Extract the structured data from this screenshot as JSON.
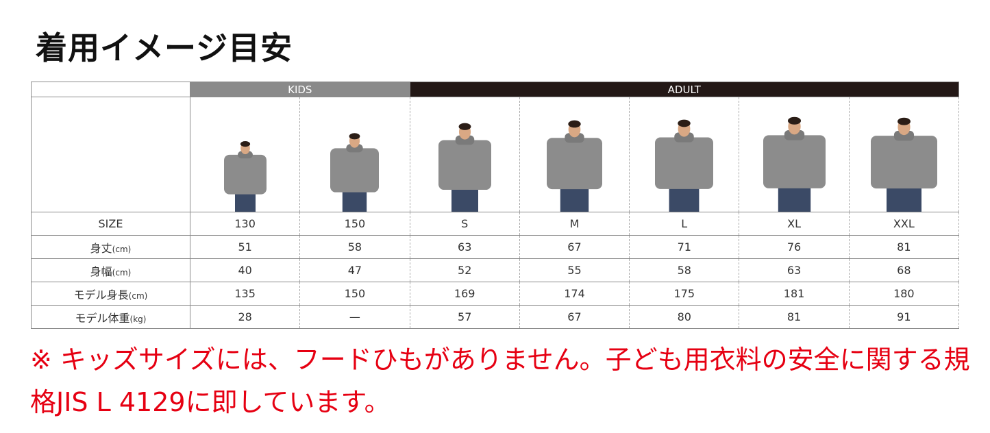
{
  "title": "着用イメージ目安",
  "groups": {
    "kids": "KIDS",
    "adult": "ADULT"
  },
  "colors": {
    "kids_header": "#8a8a8a",
    "adult_header": "#231816",
    "note": "#e60012",
    "hoodie": "#8c8c8c"
  },
  "sizes": [
    "130",
    "150",
    "S",
    "M",
    "L",
    "XL",
    "XXL"
  ],
  "rows": [
    {
      "label": "SIZE",
      "unit": "",
      "values": [
        "130",
        "150",
        "S",
        "M",
        "L",
        "XL",
        "XXL"
      ]
    },
    {
      "label": "身丈",
      "unit": "(cm)",
      "values": [
        "51",
        "58",
        "63",
        "67",
        "71",
        "76",
        "81"
      ]
    },
    {
      "label": "身幅",
      "unit": "(cm)",
      "values": [
        "40",
        "47",
        "52",
        "55",
        "58",
        "63",
        "68"
      ]
    },
    {
      "label": "モデル身長",
      "unit": "(cm)",
      "values": [
        "135",
        "150",
        "169",
        "174",
        "175",
        "181",
        "180"
      ]
    },
    {
      "label": "モデル体重",
      "unit": "(kg)",
      "values": [
        "28",
        "—",
        "57",
        "67",
        "80",
        "81",
        "91"
      ]
    }
  ],
  "note": "※ キッズサイズには、フードひもがありません。子ども用衣料の安全に関する規格JIS L 4129に即しています。"
}
